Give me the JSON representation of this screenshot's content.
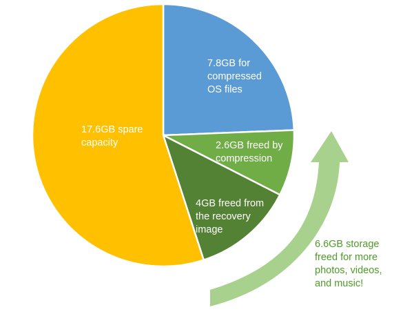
{
  "chart_data": {
    "type": "pie",
    "title": "",
    "slices": [
      {
        "label": "7.8GB for compressed OS files",
        "value": 7.8,
        "color": "#5b9bd5"
      },
      {
        "label": "2.6GB freed by compression",
        "value": 2.6,
        "color": "#70ad47"
      },
      {
        "label": "4GB freed from the recovery image",
        "value": 4.0,
        "color": "#548235"
      },
      {
        "label": "17.6GB spare capacity",
        "value": 17.6,
        "color": "#ffc000"
      }
    ],
    "labels": {
      "os_files": "7.8GB for\ncompressed\nOS files",
      "compression": "2.6GB freed by\ncompression",
      "recovery": "4GB freed from\nthe recovery\nimage",
      "spare": "17.6GB spare\ncapacity"
    },
    "annotation": {
      "text": "6.6GB storage\nfreed for more\nphotos, videos,\nand music!",
      "arrow_color": "#a9d18e",
      "text_color": "#4e9a28"
    }
  }
}
